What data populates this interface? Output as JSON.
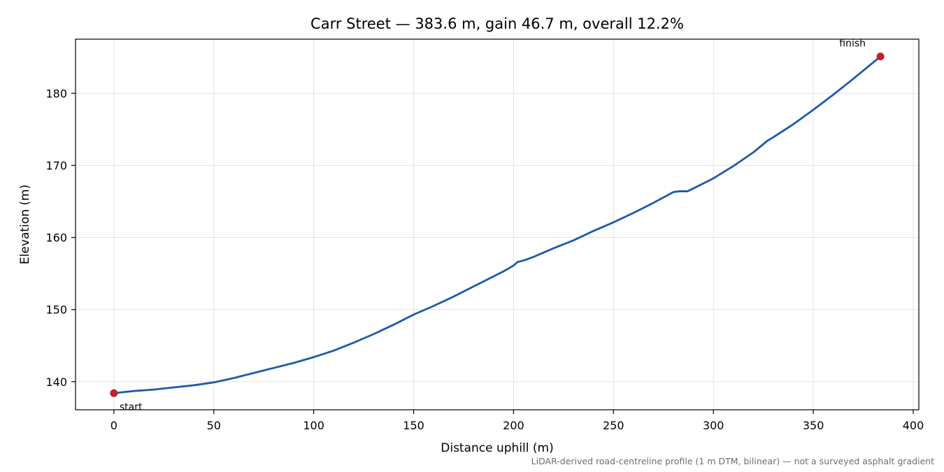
{
  "chart_data": {
    "type": "line",
    "title": "Carr Street — 383.6 m, gain 46.7 m, overall 12.2%",
    "xlabel": "Distance uphill (m)",
    "ylabel": "Elevation (m)",
    "xlim": [
      -19.2,
      402.8
    ],
    "ylim": [
      136.1,
      187.5
    ],
    "x_ticks": [
      0,
      50,
      100,
      150,
      200,
      250,
      300,
      350,
      400
    ],
    "y_ticks": [
      140,
      150,
      160,
      170,
      180
    ],
    "grid": true,
    "series": [
      {
        "color": "#1f5aa8",
        "points": [
          [
            0,
            138.4
          ],
          [
            10,
            138.7
          ],
          [
            20,
            138.9
          ],
          [
            30,
            139.2
          ],
          [
            40,
            139.5
          ],
          [
            50,
            139.9
          ],
          [
            60,
            140.5
          ],
          [
            70,
            141.2
          ],
          [
            80,
            141.9
          ],
          [
            90,
            142.6
          ],
          [
            100,
            143.4
          ],
          [
            110,
            144.3
          ],
          [
            120,
            145.4
          ],
          [
            130,
            146.6
          ],
          [
            140,
            147.9
          ],
          [
            150,
            149.3
          ],
          [
            160,
            150.5
          ],
          [
            170,
            151.8
          ],
          [
            180,
            153.2
          ],
          [
            190,
            154.6
          ],
          [
            195,
            155.3
          ],
          [
            200,
            156.1
          ],
          [
            202,
            156.6
          ],
          [
            205,
            156.8
          ],
          [
            210,
            157.3
          ],
          [
            220,
            158.5
          ],
          [
            230,
            159.6
          ],
          [
            240,
            160.9
          ],
          [
            250,
            162.1
          ],
          [
            260,
            163.4
          ],
          [
            270,
            164.8
          ],
          [
            280,
            166.3
          ],
          [
            283,
            166.4
          ],
          [
            287,
            166.4
          ],
          [
            290,
            166.8
          ],
          [
            300,
            168.2
          ],
          [
            310,
            169.9
          ],
          [
            320,
            171.8
          ],
          [
            327,
            173.4
          ],
          [
            330,
            173.9
          ],
          [
            340,
            175.7
          ],
          [
            350,
            177.7
          ],
          [
            360,
            179.8
          ],
          [
            370,
            182.0
          ],
          [
            383.6,
            185.1
          ]
        ]
      }
    ],
    "markers": [
      {
        "label": "start",
        "x": 0,
        "y": 138.4,
        "color": "#c0202a"
      },
      {
        "label": "finish",
        "x": 383.6,
        "y": 185.1,
        "color": "#c0202a"
      }
    ],
    "footnote": "LiDAR-derived road-centreline profile (1 m DTM, bilinear) — not a surveyed asphalt gradient"
  }
}
